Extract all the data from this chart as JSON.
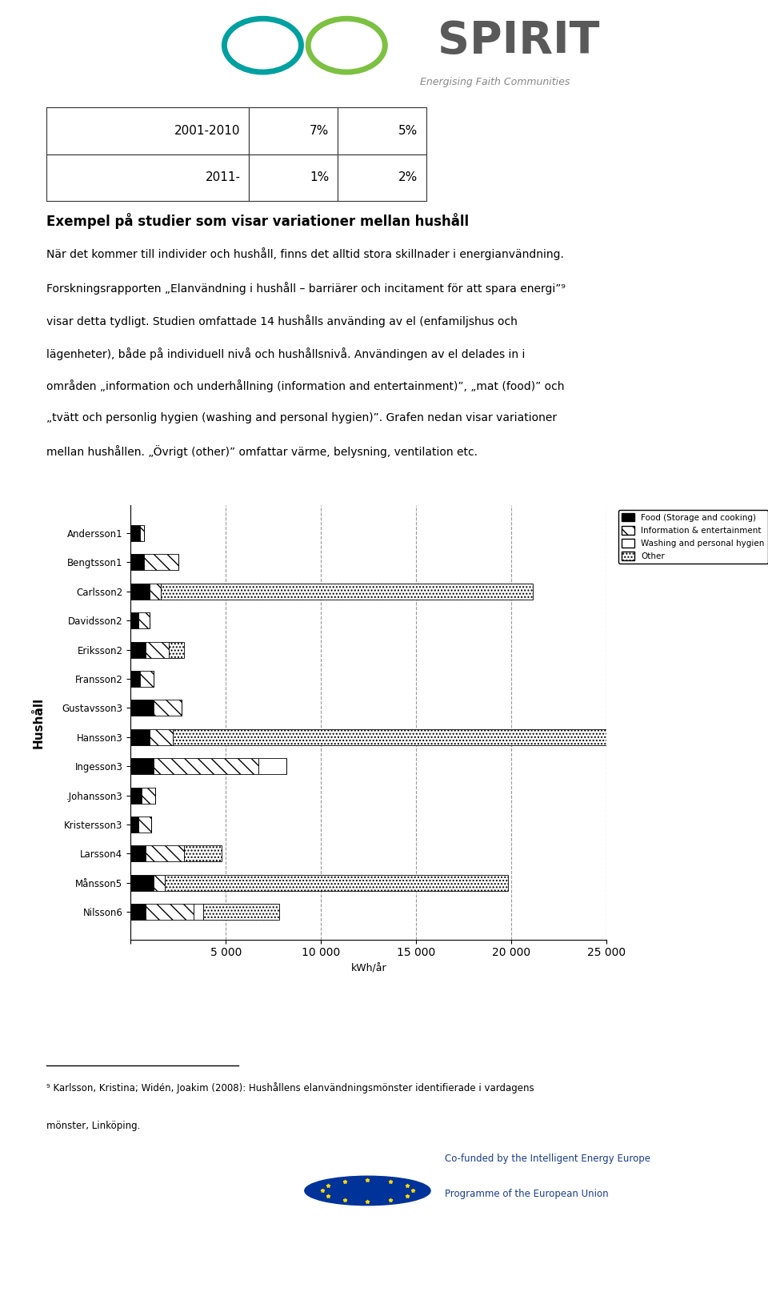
{
  "households": [
    "Andersson1",
    "Bengtsson1",
    "Carlsson2",
    "Davidsson2",
    "Eriksson2",
    "Fransson2",
    "Gustavsson3",
    "Hansson3",
    "Ingesson3",
    ".Johansson3",
    "Kristersson3",
    "Larsson4",
    "Månsson5",
    "Nilsson6"
  ],
  "food": [
    500,
    700,
    1000,
    400,
    800,
    500,
    1200,
    1000,
    1200,
    600,
    400,
    800,
    1200,
    800
  ],
  "info_entertain": [
    200,
    1800,
    600,
    600,
    1200,
    700,
    1500,
    1200,
    5500,
    700,
    700,
    2000,
    600,
    2500
  ],
  "washing": [
    0,
    0,
    0,
    0,
    0,
    0,
    0,
    0,
    1500,
    0,
    0,
    0,
    0,
    500
  ],
  "other": [
    0,
    0,
    19500,
    0,
    800,
    0,
    0,
    23000,
    0,
    0,
    0,
    2000,
    18000,
    4000
  ],
  "xlim": [
    0,
    25000
  ],
  "xticks": [
    0,
    5000,
    10000,
    15000,
    20000,
    25000
  ],
  "xlabel": "kWh/år",
  "ylabel": "Hushåll",
  "legend_labels": [
    "Food (Storage and cooking)",
    "Information & entertainment",
    "Washing and personal hygien",
    "Other"
  ],
  "table_rows": [
    [
      "2001-2010",
      "7%",
      "5%"
    ],
    [
      "2011-",
      "1%",
      "2%"
    ]
  ],
  "main_title": "Exempel på studier som visar variationer mellan hushåll",
  "para1": "När det kommer till individer och hushåll, finns det alltid stora skillnader i energianvändning.",
  "para2_line1": "Forskningsrapporten „Elanvändning i hushåll – barriärer och incitament för att spara energi”⁹",
  "para2_line2": "visar detta tydligt. Studien omfattade 14 hushålls använding av el (enfamiljshus och",
  "para2_line3": "lägenheter), både på individuell nivå och hushållsnivå. Användingen av el delades in i",
  "para2_line4": "områden „information och underhållning (information and entertainment)”, „mat (food)” och",
  "para2_line5": "„tvätt och personlig hygien (washing and personal hygien)”. Grafen nedan visar variationer",
  "para2_line6": "mellan hushållen. „Övrigt (other)” omfattar värme, belysning, ventilation etc.",
  "footnote_line1": "⁹ Karlsson, Kristina; Widén, Joakim (2008): Hushållens elanvändningsmönster identifierade i vardagens",
  "footnote_line2": "mönster, Linköping.",
  "eu_text_line1": "Co-funded by the Intelligent Energy Europe",
  "eu_text_line2": "Programme of the European Union",
  "bg_color": "#ffffff",
  "bar_height": 0.55,
  "spirit_subtitle": "Energising Faith Communities"
}
